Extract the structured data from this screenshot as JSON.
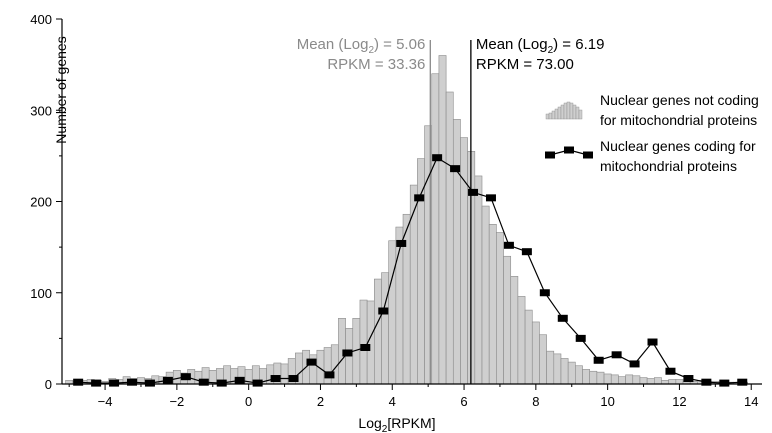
{
  "chart_data": {
    "type": "bar",
    "xlabel": "Log2[RPKM]",
    "xlabel_base": "Log",
    "xlabel_sub": "2",
    "xlabel_rest": "[RPKM]",
    "ylabel": "Number of genes",
    "xlim": [
      -5.2,
      14.3
    ],
    "ylim": [
      0,
      400
    ],
    "xticks": [
      -4,
      -2,
      0,
      2,
      4,
      6,
      8,
      10,
      12,
      14
    ],
    "yticks": [
      0,
      100,
      200,
      300,
      400
    ],
    "grid": false,
    "legend_placement": "right",
    "series": [
      {
        "name": "Nuclear genes not coding for mitochondrial proteins",
        "type": "histogram",
        "color": "#cfcfcf",
        "edge_color": "#8a8a8a",
        "bin_width": 0.2,
        "x": [
          -5.0,
          -4.8,
          -4.6,
          -4.4,
          -4.2,
          -4.0,
          -3.8,
          -3.6,
          -3.4,
          -3.2,
          -3.0,
          -2.8,
          -2.6,
          -2.4,
          -2.2,
          -2.0,
          -1.8,
          -1.6,
          -1.4,
          -1.2,
          -1.0,
          -0.8,
          -0.6,
          -0.4,
          -0.2,
          0.0,
          0.2,
          0.4,
          0.6,
          0.8,
          1.0,
          1.2,
          1.4,
          1.6,
          1.8,
          2.0,
          2.2,
          2.4,
          2.6,
          2.8,
          3.0,
          3.2,
          3.4,
          3.6,
          3.8,
          4.0,
          4.2,
          4.4,
          4.6,
          4.8,
          5.0,
          5.2,
          5.4,
          5.6,
          5.8,
          6.0,
          6.2,
          6.4,
          6.6,
          6.8,
          7.0,
          7.2,
          7.4,
          7.6,
          7.8,
          8.0,
          8.2,
          8.4,
          8.6,
          8.8,
          9.0,
          9.2,
          9.4,
          9.6,
          9.8,
          10.0,
          10.2,
          10.4,
          10.6,
          10.8,
          11.0,
          11.2,
          11.4,
          11.6,
          11.8,
          12.0,
          12.2,
          12.4,
          12.6,
          12.8,
          13.0,
          13.2,
          13.4,
          13.6,
          13.8
        ],
        "values": [
          4,
          3,
          4,
          5,
          4,
          3,
          6,
          5,
          8,
          6,
          7,
          6,
          9,
          8,
          13,
          15,
          12,
          16,
          14,
          18,
          15,
          17,
          20,
          17,
          19,
          16,
          20,
          17,
          21,
          23,
          22,
          28,
          34,
          37,
          32,
          37,
          40,
          43,
          72,
          61,
          72,
          92,
          91,
          115,
          122,
          157,
          172,
          186,
          218,
          247,
          283,
          340,
          360,
          320,
          290,
          270,
          255,
          228,
          195,
          175,
          166,
          140,
          118,
          96,
          81,
          68,
          54,
          36,
          33,
          28,
          24,
          20,
          16,
          14,
          13,
          11,
          10,
          8,
          10,
          9,
          7,
          6,
          7,
          4,
          5,
          5,
          3,
          3,
          4,
          3,
          3,
          2,
          2,
          2,
          2
        ]
      },
      {
        "name": "Nuclear genes coding for mitochondrial proteins",
        "type": "line",
        "color": "#000000",
        "marker": "square",
        "x": [
          -4.75,
          -4.25,
          -3.75,
          -3.25,
          -2.75,
          -2.25,
          -1.75,
          -1.25,
          -0.75,
          -0.25,
          0.25,
          0.75,
          1.25,
          1.75,
          2.25,
          2.75,
          3.25,
          3.75,
          4.25,
          4.75,
          5.25,
          5.75,
          6.25,
          6.75,
          7.25,
          7.75,
          8.25,
          8.75,
          9.25,
          9.75,
          10.25,
          10.75,
          11.25,
          11.75,
          12.25,
          12.75,
          13.25,
          13.75
        ],
        "values": [
          2,
          1,
          1,
          2,
          1,
          4,
          8,
          2,
          1,
          4,
          1,
          6,
          6,
          24,
          10,
          34,
          40,
          80,
          154,
          204,
          248,
          236,
          210,
          204,
          152,
          145,
          100,
          72,
          50,
          26,
          32,
          22,
          46,
          14,
          6,
          2,
          1,
          2
        ]
      }
    ],
    "annotations": [
      {
        "mean_line_x": 5.06,
        "line1_prefix": "Mean (Log",
        "line1_sub": "2",
        "line1_suffix": ") = 5.06",
        "line2": "RPKM = 33.36",
        "color": "#8a8a8a",
        "anchor": "end"
      },
      {
        "mean_line_x": 6.19,
        "line1_prefix": "Mean (Log",
        "line1_sub": "2",
        "line1_suffix": ") = 6.19",
        "line2": "RPKM = 73.00",
        "color": "#000000",
        "anchor": "start"
      }
    ],
    "legend": [
      {
        "line1": "Nuclear genes not coding",
        "line2": "for mitochondrial proteins"
      },
      {
        "line1": "Nuclear genes coding for",
        "line2": "mitochondrial proteins"
      }
    ]
  }
}
